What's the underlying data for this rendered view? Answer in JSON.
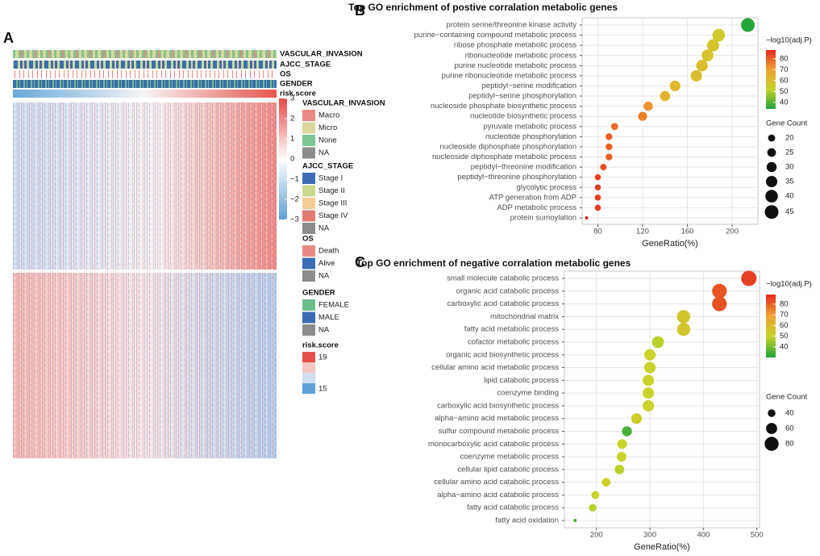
{
  "panel_a": {
    "label": "A",
    "tracks": [
      "VASCULAR_INVASION",
      "AJCC_STAGE",
      "OS",
      "GENDER",
      "risk.score"
    ],
    "colorbar_ticks": [
      3,
      2,
      1,
      0,
      {
        "value": -1,
        "label": "−1"
      },
      {
        "value": -2,
        "label": "−2"
      },
      {
        "value": -3,
        "label": "−3"
      }
    ],
    "colorbar_lim": [
      -3,
      3
    ],
    "legends": [
      {
        "title": "VASCULAR_INVASION",
        "items": [
          {
            "label": "Macro",
            "color": "#e88a82"
          },
          {
            "label": "Micro",
            "color": "#dcd69c"
          },
          {
            "label": "None",
            "color": "#7fc493"
          },
          {
            "label": "NA",
            "color": "#8c8c8c"
          }
        ]
      },
      {
        "title": "AJCC_STAGE",
        "items": [
          {
            "label": "Stage I",
            "color": "#3c6db4"
          },
          {
            "label": "Stage II",
            "color": "#c9da8e"
          },
          {
            "label": "Stage III",
            "color": "#f2cc94"
          },
          {
            "label": "Stage IV",
            "color": "#e27a72"
          },
          {
            "label": "NA",
            "color": "#8c8c8c"
          }
        ]
      },
      {
        "title": "OS",
        "items": [
          {
            "label": "Death",
            "color": "#e88a82"
          },
          {
            "label": "Alive",
            "color": "#3c6db4"
          },
          {
            "label": "NA",
            "color": "#8c8c8c"
          }
        ]
      },
      {
        "title": "GENDER",
        "items": [
          {
            "label": "FEMALE",
            "color": "#6dbd8c"
          },
          {
            "label": "MALE",
            "color": "#3a6db0"
          },
          {
            "label": "NA",
            "color": "#8c8c8c"
          }
        ]
      },
      {
        "title": "risk.score",
        "items": [
          {
            "label": "19",
            "color": "#e5504a"
          },
          {
            "color": "#f4c7c4"
          },
          {
            "color": "#d3dff0"
          },
          {
            "label": "15",
            "color": "#5fa2d8"
          }
        ]
      }
    ]
  },
  "chart_data": [
    {
      "type": "dot",
      "panel": "B",
      "title": "Top GO enrichment of postive corralation metabolic genes",
      "categories": [
        "protein serine/threonine kinase activity",
        "purine−containing compound metabolic process",
        "ribose phosphate metabolic process",
        "ribonucleotide metabolic process",
        "purine nucleotide metabolic process",
        "purine ribonucleotide metabolic process",
        "peptidyl−serine modification",
        "peptidyl−serine phosphorylation",
        "nucleoside phosphate biosynthetic process",
        "nucleotide biosynthetic process",
        "pyruvate metabolic process",
        "nucleotide phosphorylation",
        "nucleoside diphosphate phosphorylation",
        "nucleoside diphosphate metabolic process",
        "peptidyl−threonine modification",
        "peptidyl−threonine phosphorylation",
        "glycolytic process",
        "ATP generation from ADP",
        "ADP metabolic process",
        "protein sumoylation"
      ],
      "values": [
        214,
        188,
        183,
        178,
        173,
        168,
        149,
        140,
        125,
        120,
        95,
        90,
        90,
        90,
        85,
        80,
        80,
        80,
        80,
        70
      ],
      "color_values": [
        35,
        55,
        58,
        58,
        60,
        60,
        62,
        63,
        72,
        75,
        78,
        80,
        80,
        80,
        82,
        85,
        85,
        85,
        85,
        88
      ],
      "sizes": [
        45,
        40,
        38,
        37,
        36,
        35,
        32,
        30,
        27,
        26,
        20,
        19,
        19,
        19,
        18,
        17,
        17,
        17,
        17,
        10
      ],
      "x_label": "GeneRatio(%)",
      "xlim": [
        66,
        223
      ],
      "xticks": [
        80,
        120,
        160,
        200
      ],
      "color_title": "−log10(adj.P)",
      "clim": [
        34,
        88
      ],
      "cticks": [
        40,
        50,
        60,
        70,
        80
      ],
      "colors": [
        "#1fa23a",
        "#c8d42a",
        "#f0a030",
        "#e4281e"
      ],
      "size_title": "Gene Count",
      "size_ticks": [
        20,
        25,
        30,
        35,
        40,
        45
      ],
      "grid": true
    },
    {
      "type": "dot",
      "panel": "C",
      "title": "Top GO enrichment of negative corralation metabolic genes",
      "categories": [
        "small molecule catabolic process",
        "organic acid catabolic process",
        "carboxylic acid catabolic process",
        "mitochondrial matrix",
        "fatty acid metabolic process",
        "cofactor metabolic process",
        "organic acid biosynthetic process",
        "cellular amino acid metabolic process",
        "lipid catabolic process",
        "coenzyme binding",
        "carboxylic acid biosynthetic process",
        "alpha−amino acid metabolic process",
        "sulfur compound metabolic process",
        "monocarboxylic acid catabolic process",
        "coenzyme metabolic process",
        "cellular lipid catabolic process",
        "cellular amino acid catabolic process",
        "alpha−amino acid catabolic process",
        "fatty acid catabolic process",
        "fatty acid oxidation"
      ],
      "values": [
        485,
        430,
        430,
        363,
        363,
        315,
        300,
        300,
        297,
        297,
        297,
        275,
        257,
        248,
        247,
        243,
        218,
        198,
        193,
        160
      ],
      "color_values": [
        85,
        82,
        82,
        55,
        55,
        48,
        50,
        50,
        50,
        50,
        50,
        52,
        35,
        50,
        50,
        48,
        52,
        50,
        48,
        35
      ],
      "sizes": [
        90,
        85,
        85,
        75,
        75,
        65,
        62,
        62,
        61,
        61,
        61,
        57,
        53,
        51,
        51,
        50,
        45,
        41,
        40,
        20
      ],
      "x_label": "GeneRatio(%)",
      "xlim": [
        140,
        505
      ],
      "xticks": [
        200,
        300,
        400,
        500
      ],
      "color_title": "−log10(adj.P)",
      "clim": [
        30,
        89
      ],
      "cticks": [
        40,
        50,
        60,
        70,
        80
      ],
      "colors": [
        "#1fa23a",
        "#c8d42a",
        "#f0a030",
        "#e4281e"
      ],
      "size_title": "Gene Count",
      "size_ticks": [
        40,
        60,
        80
      ],
      "grid": true
    }
  ]
}
